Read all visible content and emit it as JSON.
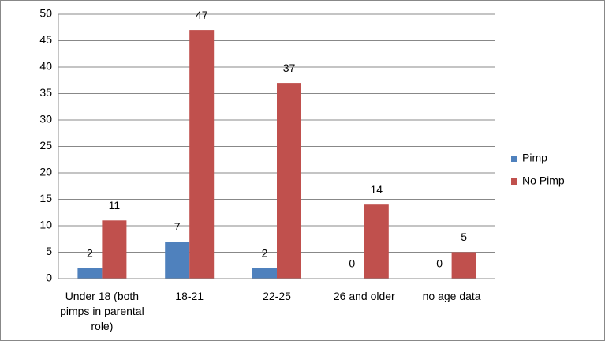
{
  "chart_data": {
    "type": "bar",
    "categories": [
      "Under 18 (both pimps in parental role)",
      "18-21",
      "22-25",
      "26 and older",
      "no age data"
    ],
    "series": [
      {
        "name": "Pimp",
        "color": "#4f81bd",
        "values": [
          2,
          7,
          2,
          0,
          0
        ]
      },
      {
        "name": "No Pimp",
        "color": "#c0504d",
        "values": [
          11,
          47,
          37,
          14,
          5
        ]
      }
    ],
    "ylim": [
      0,
      50
    ],
    "yticks": [
      0,
      5,
      10,
      15,
      20,
      25,
      30,
      35,
      40,
      45,
      50
    ],
    "grid": true,
    "legend": "right",
    "data_labels": true
  }
}
